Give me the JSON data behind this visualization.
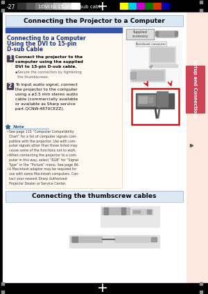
{
  "page_bg": "#000000",
  "main_title": "Connecting the Projector to a Computer",
  "main_title_bg": "#dde8f5",
  "section_title_line1": "Connecting to a Computer",
  "section_title_line2": "Using the DVI to 15-pin",
  "section_title_line3": "D-sub Cable",
  "section_title_color": "#1a3399",
  "section_bg": "#fff8f0",
  "section_header_bar": "#3355aa",
  "step1_text": "Connect the projector to the\ncomputer using the supplied\nDVI to 15-pin D-sub cable.",
  "step1_sub": "▪Secure the connectors by tightening\n  the thumbscrews.",
  "step2_text": "To input audio signal, connect\nthe projector to the computer\nusing a ø3.5 mm stereo audio\ncable (commercially available\nor available as Sharp service\npart QCNW-4870CEZZ).",
  "note_lines": "•See page 115 “Computer Compatibility\n  Chart” for a list of computer signals com-\n  patible with the projector. Use with com-\n  puter signals other than those listed may\n  cause some of the functions not to work.\n•When connecting the projector to a com-\n  puter in this way, select “RGB” for “Signal\n  Type” in the “Picture” menu. See page 86.\n•A Macintosh adaptor may be required for\n  use with some Macintosh computers. Con-\n  tact your nearest Sharp Authorized\n  Projector Dealer or Service Center.",
  "supplied_label": "Supplied\naccessory",
  "notebook_label": "Notebook computer",
  "bottom_title": "Connecting the thumbscrew cables",
  "bottom_title_bg": "#dde8f5",
  "sidebar_text": "Setup and Connections",
  "sidebar_tab_color": "#cc4455",
  "sidebar_outer_bg": "#fce8de",
  "sidebar_text_color": "#ffffff",
  "page_num": "-27",
  "page_label": "1DVI to 15-pin D-sub cable",
  "color_bars": [
    "#ffff00",
    "#00ccee",
    "#cc00cc",
    "#007700",
    "#dd3300",
    "#0000aa",
    "#000000"
  ],
  "gray_bars": [
    "#111111",
    "#333333",
    "#555555",
    "#777777",
    "#999999",
    "#bbbbbb",
    "#dddddd",
    "#ffffff"
  ]
}
